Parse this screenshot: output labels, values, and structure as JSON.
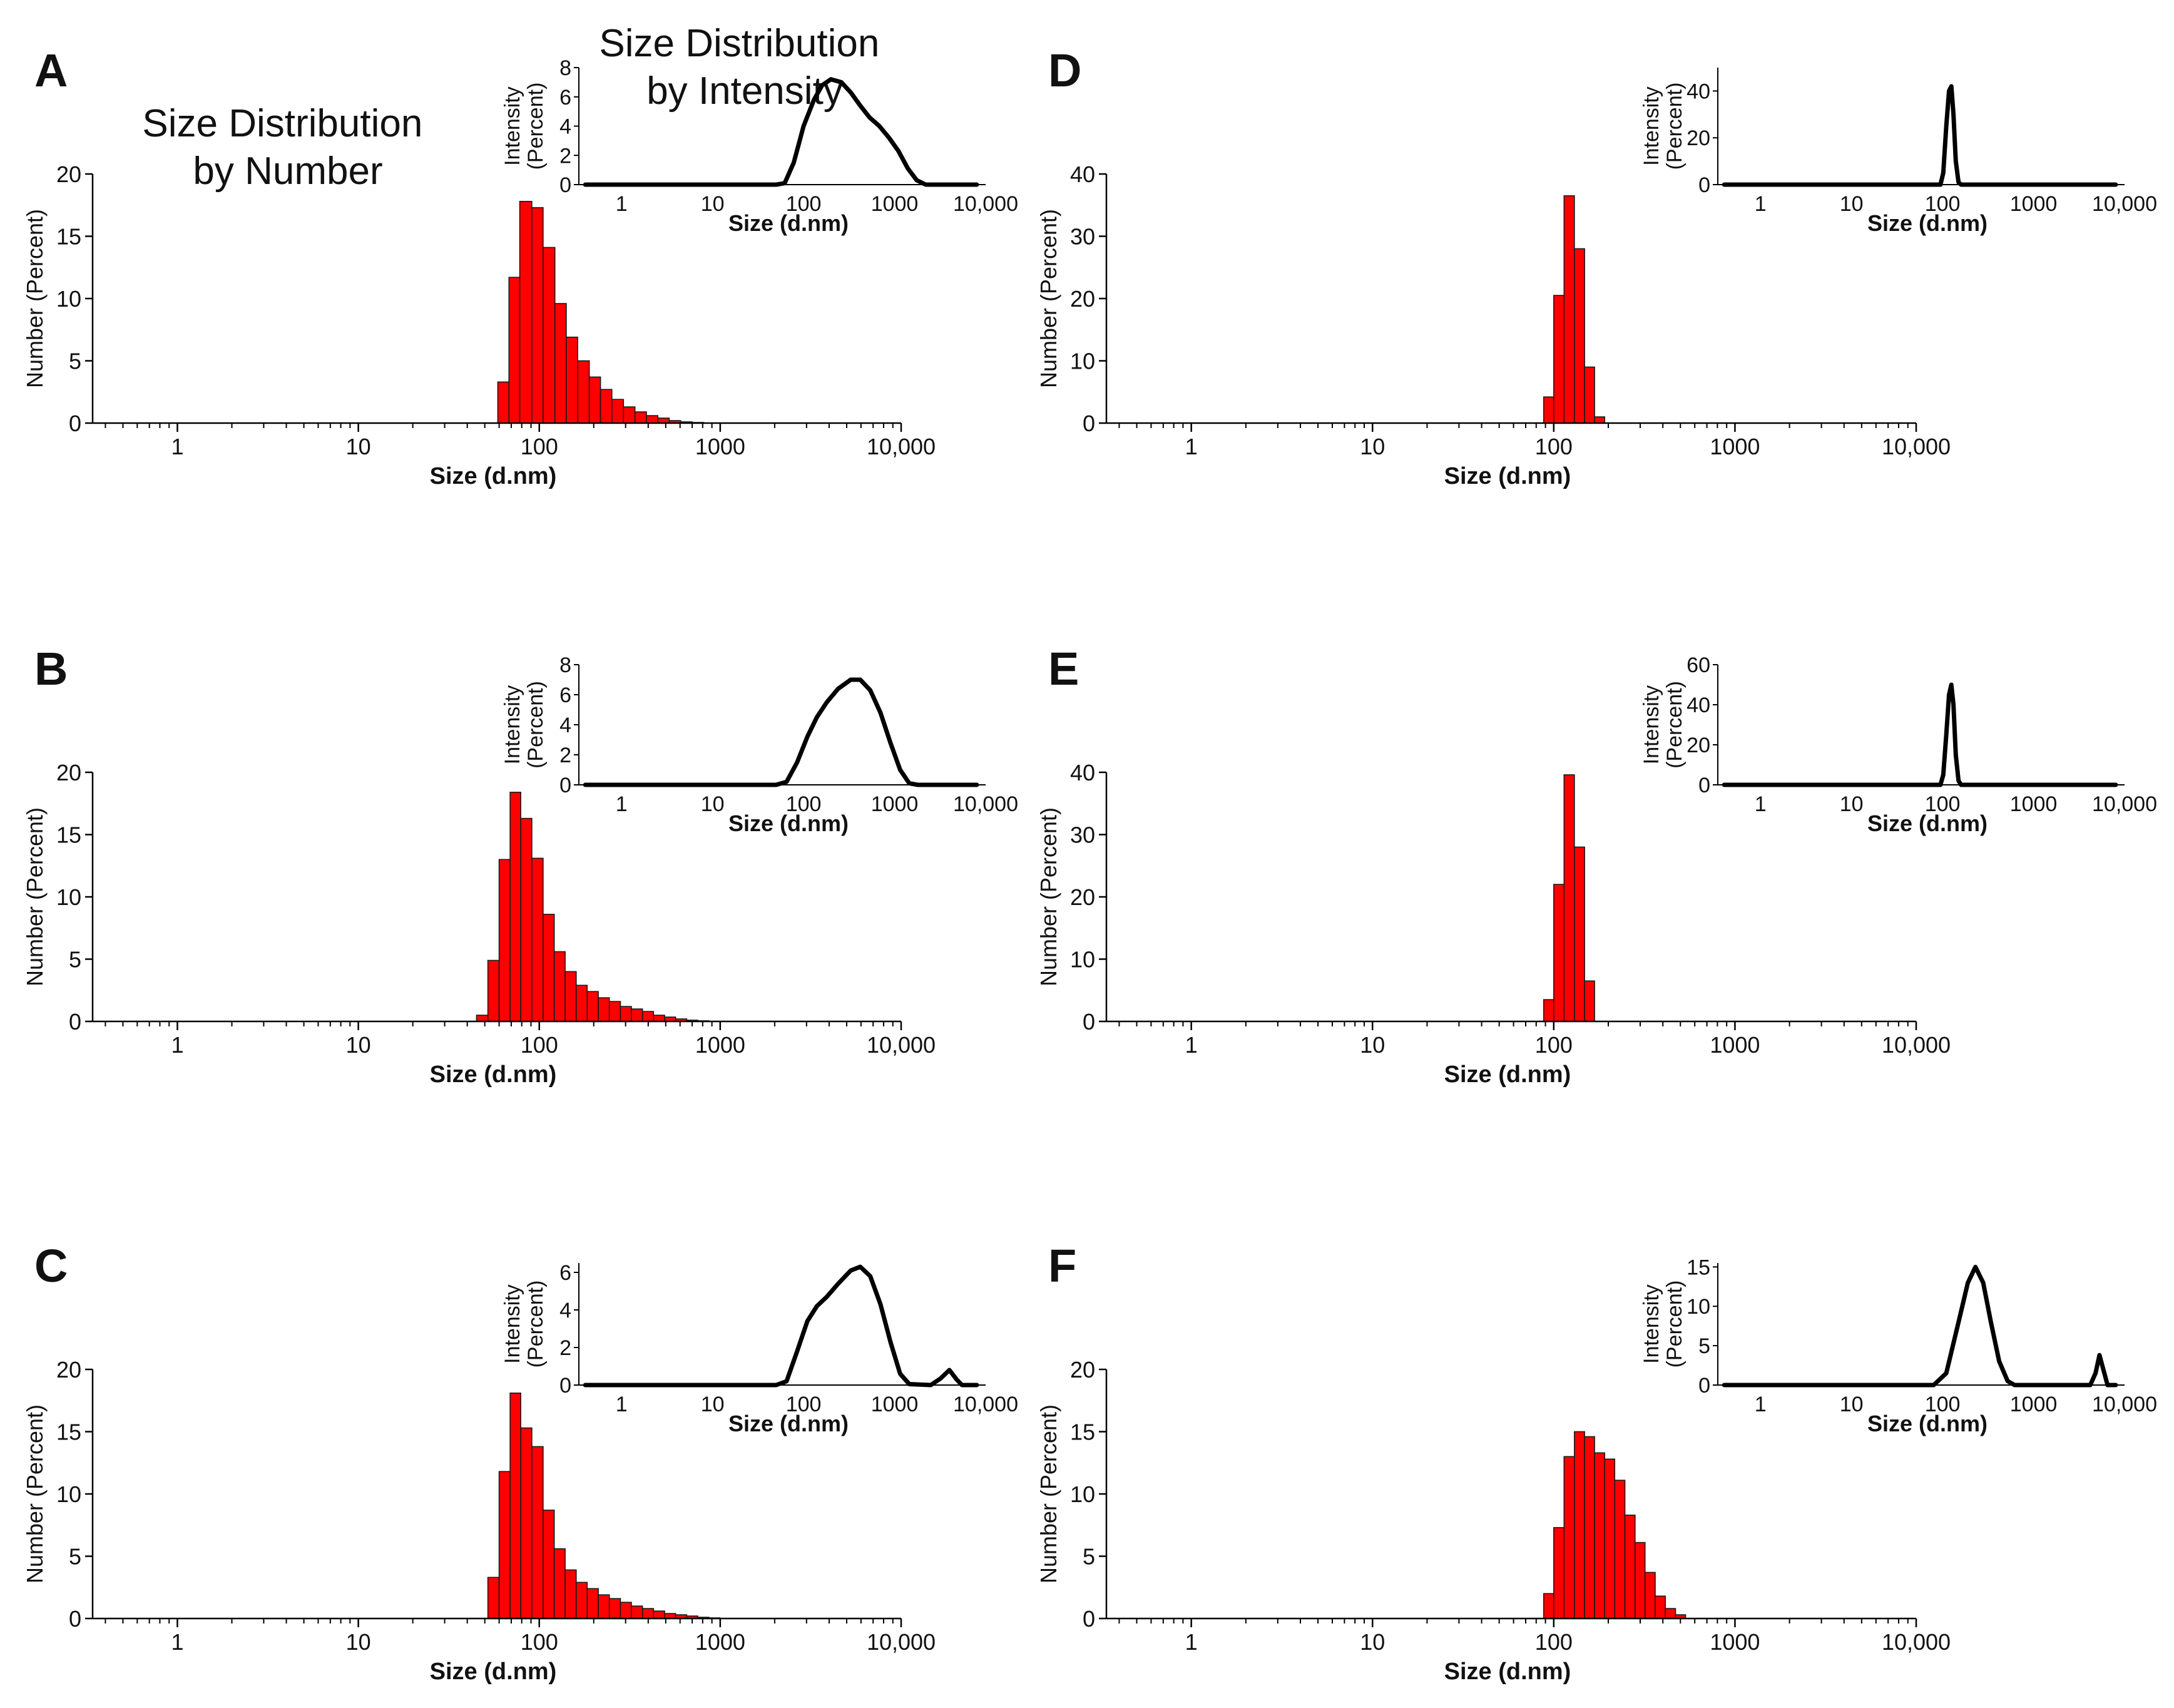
{
  "figure": {
    "main_title": [
      "Size Distribution",
      "by Number"
    ],
    "inset_title": [
      "Size Distribution",
      "by Intensity"
    ]
  },
  "chart_data": [
    {
      "panel": "A",
      "type": "bar",
      "xlabel": "Size (d.nm)",
      "ylabel": "Number (Percent)",
      "x_scale": "log",
      "xlim": [
        0.34,
        10000
      ],
      "ylim": [
        0,
        20
      ],
      "x_ticks": [
        1,
        10,
        100,
        1000,
        10000
      ],
      "x_tick_labels": [
        "1",
        "10",
        "100",
        "1000",
        "10,000"
      ],
      "y_ticks": [
        0,
        5,
        10,
        15,
        20
      ],
      "bins": [
        [
          59,
          68,
          3.3
        ],
        [
          68,
          78,
          11.7
        ],
        [
          78,
          91,
          17.8
        ],
        [
          91,
          105,
          17.3
        ],
        [
          105,
          122,
          14.1
        ],
        [
          122,
          141,
          9.6
        ],
        [
          141,
          163,
          6.9
        ],
        [
          163,
          189,
          5.0
        ],
        [
          189,
          218,
          3.7
        ],
        [
          218,
          252,
          2.7
        ],
        [
          252,
          292,
          1.9
        ],
        [
          292,
          338,
          1.3
        ],
        [
          338,
          391,
          0.9
        ],
        [
          391,
          452,
          0.6
        ],
        [
          452,
          523,
          0.4
        ],
        [
          523,
          605,
          0.2
        ],
        [
          605,
          700,
          0.1
        ],
        [
          700,
          810,
          0.05
        ]
      ],
      "inset": {
        "type": "line",
        "xlabel": "Size (d.nm)",
        "ylabel": "Intensity (Percent)",
        "x_scale": "log",
        "xlim": [
          0.34,
          10000
        ],
        "ylim": [
          0,
          8
        ],
        "x_ticks": [
          1,
          10,
          100,
          1000,
          10000
        ],
        "x_tick_labels": [
          "1",
          "10",
          "100",
          "1000",
          "10,000"
        ],
        "y_ticks": [
          0,
          2,
          4,
          6,
          8
        ],
        "points": [
          [
            0.4,
            0
          ],
          [
            50,
            0
          ],
          [
            62,
            0.1
          ],
          [
            78,
            1.5
          ],
          [
            100,
            4.0
          ],
          [
            130,
            5.8
          ],
          [
            160,
            6.8
          ],
          [
            200,
            7.2
          ],
          [
            260,
            7.0
          ],
          [
            330,
            6.3
          ],
          [
            420,
            5.4
          ],
          [
            530,
            4.6
          ],
          [
            680,
            4.0
          ],
          [
            870,
            3.2
          ],
          [
            1100,
            2.3
          ],
          [
            1400,
            1.1
          ],
          [
            1750,
            0.3
          ],
          [
            2200,
            0
          ],
          [
            8000,
            0
          ]
        ]
      }
    },
    {
      "panel": "B",
      "type": "bar",
      "xlabel": "Size (d.nm)",
      "ylabel": "Number (Percent)",
      "x_scale": "log",
      "xlim": [
        0.34,
        10000
      ],
      "ylim": [
        0,
        20
      ],
      "x_ticks": [
        1,
        10,
        100,
        1000,
        10000
      ],
      "x_tick_labels": [
        "1",
        "10",
        "100",
        "1000",
        "10,000"
      ],
      "y_ticks": [
        0,
        5,
        10,
        15,
        20
      ],
      "bins": [
        [
          45,
          52,
          0.5
        ],
        [
          52,
          60,
          4.9
        ],
        [
          60,
          69,
          13.0
        ],
        [
          69,
          79,
          18.4
        ],
        [
          79,
          91,
          16.3
        ],
        [
          91,
          105,
          13.1
        ],
        [
          105,
          121,
          8.6
        ],
        [
          121,
          139,
          5.6
        ],
        [
          139,
          160,
          4.0
        ],
        [
          160,
          184,
          2.9
        ],
        [
          184,
          212,
          2.4
        ],
        [
          212,
          244,
          1.9
        ],
        [
          244,
          281,
          1.6
        ],
        [
          281,
          323,
          1.2
        ],
        [
          323,
          372,
          1.0
        ],
        [
          372,
          428,
          0.8
        ],
        [
          428,
          493,
          0.5
        ],
        [
          493,
          567,
          0.35
        ],
        [
          567,
          653,
          0.2
        ],
        [
          653,
          752,
          0.1
        ],
        [
          752,
          866,
          0.05
        ]
      ],
      "inset": {
        "type": "line",
        "xlabel": "Size (d.nm)",
        "ylabel": "Intensity (Percent)",
        "x_scale": "log",
        "xlim": [
          0.34,
          10000
        ],
        "ylim": [
          0,
          8
        ],
        "x_ticks": [
          1,
          10,
          100,
          1000,
          10000
        ],
        "x_tick_labels": [
          "1",
          "10",
          "100",
          "1000",
          "10,000"
        ],
        "y_ticks": [
          0,
          2,
          4,
          6,
          8
        ],
        "points": [
          [
            0.4,
            0
          ],
          [
            50,
            0
          ],
          [
            65,
            0.2
          ],
          [
            85,
            1.5
          ],
          [
            110,
            3.2
          ],
          [
            140,
            4.5
          ],
          [
            180,
            5.5
          ],
          [
            240,
            6.4
          ],
          [
            330,
            7.0
          ],
          [
            420,
            7.0
          ],
          [
            540,
            6.3
          ],
          [
            700,
            4.8
          ],
          [
            900,
            2.8
          ],
          [
            1150,
            1.0
          ],
          [
            1450,
            0.1
          ],
          [
            1800,
            0
          ],
          [
            8000,
            0
          ]
        ]
      }
    },
    {
      "panel": "C",
      "type": "bar",
      "xlabel": "Size (d.nm)",
      "ylabel": "Number (Percent)",
      "x_scale": "log",
      "xlim": [
        0.34,
        10000
      ],
      "ylim": [
        0,
        20
      ],
      "x_ticks": [
        1,
        10,
        100,
        1000,
        10000
      ],
      "x_tick_labels": [
        "1",
        "10",
        "100",
        "1000",
        "10,000"
      ],
      "y_ticks": [
        0,
        5,
        10,
        15,
        20
      ],
      "bins": [
        [
          52,
          60,
          3.3
        ],
        [
          60,
          69,
          11.8
        ],
        [
          69,
          79,
          18.1
        ],
        [
          79,
          91,
          15.3
        ],
        [
          91,
          105,
          13.8
        ],
        [
          105,
          121,
          8.7
        ],
        [
          121,
          139,
          5.6
        ],
        [
          139,
          160,
          3.9
        ],
        [
          160,
          184,
          2.9
        ],
        [
          184,
          212,
          2.4
        ],
        [
          212,
          244,
          1.9
        ],
        [
          244,
          281,
          1.6
        ],
        [
          281,
          323,
          1.3
        ],
        [
          323,
          372,
          1.0
        ],
        [
          372,
          428,
          0.8
        ],
        [
          428,
          493,
          0.6
        ],
        [
          493,
          567,
          0.4
        ],
        [
          567,
          653,
          0.3
        ],
        [
          653,
          752,
          0.2
        ],
        [
          752,
          866,
          0.1
        ],
        [
          866,
          997,
          0.05
        ]
      ],
      "inset": {
        "type": "line",
        "xlabel": "Size (d.nm)",
        "ylabel": "Intensity (Percent)",
        "x_scale": "log",
        "xlim": [
          0.34,
          10000
        ],
        "ylim": [
          0,
          6.5
        ],
        "x_ticks": [
          1,
          10,
          100,
          1000,
          10000
        ],
        "x_tick_labels": [
          "1",
          "10",
          "100",
          "1000",
          "10,000"
        ],
        "y_ticks": [
          0,
          2,
          4,
          6
        ],
        "points": [
          [
            0.4,
            0
          ],
          [
            50,
            0
          ],
          [
            65,
            0.2
          ],
          [
            85,
            1.8
          ],
          [
            110,
            3.4
          ],
          [
            140,
            4.2
          ],
          [
            180,
            4.7
          ],
          [
            240,
            5.4
          ],
          [
            330,
            6.1
          ],
          [
            420,
            6.3
          ],
          [
            540,
            5.8
          ],
          [
            700,
            4.3
          ],
          [
            900,
            2.3
          ],
          [
            1150,
            0.6
          ],
          [
            1450,
            0.05
          ],
          [
            2500,
            0
          ],
          [
            3200,
            0.35
          ],
          [
            4000,
            0.8
          ],
          [
            4800,
            0.3
          ],
          [
            5500,
            0
          ],
          [
            8000,
            0
          ]
        ]
      }
    },
    {
      "panel": "D",
      "type": "bar",
      "xlabel": "Size (d.nm)",
      "ylabel": "Number (Percent)",
      "x_scale": "log",
      "xlim": [
        0.34,
        10000
      ],
      "ylim": [
        0,
        40
      ],
      "x_ticks": [
        1,
        10,
        100,
        1000,
        10000
      ],
      "x_tick_labels": [
        "1",
        "10",
        "100",
        "1000",
        "10,000"
      ],
      "y_ticks": [
        0,
        10,
        20,
        30,
        40
      ],
      "bins": [
        [
          88,
          100,
          4.2
        ],
        [
          100,
          114,
          20.5
        ],
        [
          114,
          130,
          36.5
        ],
        [
          130,
          148,
          28.0
        ],
        [
          148,
          168,
          9.0
        ],
        [
          168,
          191,
          1.0
        ]
      ],
      "inset": {
        "type": "line",
        "xlabel": "Size (d.nm)",
        "ylabel": "Intensity (Percent)",
        "x_scale": "log",
        "xlim": [
          0.34,
          10000
        ],
        "ylim": [
          0,
          50
        ],
        "x_ticks": [
          1,
          10,
          100,
          1000,
          10000
        ],
        "x_tick_labels": [
          "1",
          "10",
          "100",
          "1000",
          "10,000"
        ],
        "y_ticks": [
          0,
          20,
          40
        ],
        "points": [
          [
            0.4,
            0
          ],
          [
            95,
            0
          ],
          [
            102,
            5
          ],
          [
            110,
            25
          ],
          [
            118,
            40
          ],
          [
            125,
            42
          ],
          [
            132,
            30
          ],
          [
            140,
            10
          ],
          [
            150,
            1
          ],
          [
            160,
            0
          ],
          [
            8000,
            0
          ]
        ]
      }
    },
    {
      "panel": "E",
      "type": "bar",
      "xlabel": "Size (d.nm)",
      "ylabel": "Number (Percent)",
      "x_scale": "log",
      "xlim": [
        0.34,
        10000
      ],
      "ylim": [
        0,
        40
      ],
      "x_ticks": [
        1,
        10,
        100,
        1000,
        10000
      ],
      "x_tick_labels": [
        "1",
        "10",
        "100",
        "1000",
        "10,000"
      ],
      "y_ticks": [
        0,
        10,
        20,
        30,
        40
      ],
      "bins": [
        [
          88,
          100,
          3.5
        ],
        [
          100,
          114,
          22.0
        ],
        [
          114,
          130,
          39.6
        ],
        [
          130,
          148,
          28.0
        ],
        [
          148,
          168,
          6.5
        ]
      ],
      "inset": {
        "type": "line",
        "xlabel": "Size (d.nm)",
        "ylabel": "Intensity (Percent)",
        "x_scale": "log",
        "xlim": [
          0.34,
          10000
        ],
        "ylim": [
          0,
          60
        ],
        "x_ticks": [
          1,
          10,
          100,
          1000,
          10000
        ],
        "x_tick_labels": [
          "1",
          "10",
          "100",
          "1000",
          "10,000"
        ],
        "y_ticks": [
          0,
          20,
          40,
          60
        ],
        "points": [
          [
            0.4,
            0
          ],
          [
            95,
            0
          ],
          [
            102,
            5
          ],
          [
            110,
            25
          ],
          [
            118,
            45
          ],
          [
            125,
            50
          ],
          [
            132,
            40
          ],
          [
            140,
            15
          ],
          [
            150,
            2
          ],
          [
            160,
            0
          ],
          [
            8000,
            0
          ]
        ]
      }
    },
    {
      "panel": "F",
      "type": "bar",
      "xlabel": "Size (d.nm)",
      "ylabel": "Number (Percent)",
      "x_scale": "log",
      "xlim": [
        0.34,
        10000
      ],
      "ylim": [
        0,
        20
      ],
      "x_ticks": [
        1,
        10,
        100,
        1000,
        10000
      ],
      "x_tick_labels": [
        "1",
        "10",
        "100",
        "1000",
        "10,000"
      ],
      "y_ticks": [
        0,
        5,
        10,
        15,
        20
      ],
      "bins": [
        [
          88,
          100,
          2.0
        ],
        [
          100,
          114,
          7.3
        ],
        [
          114,
          130,
          13.0
        ],
        [
          130,
          148,
          15.0
        ],
        [
          148,
          168,
          14.6
        ],
        [
          168,
          191,
          13.3
        ],
        [
          191,
          217,
          12.8
        ],
        [
          217,
          247,
          11.1
        ],
        [
          247,
          281,
          8.3
        ],
        [
          281,
          319,
          6.1
        ],
        [
          319,
          363,
          3.7
        ],
        [
          363,
          413,
          1.8
        ],
        [
          413,
          470,
          0.8
        ],
        [
          470,
          534,
          0.3
        ]
      ],
      "inset": {
        "type": "line",
        "xlabel": "Size (d.nm)",
        "ylabel": "Intensity (Percent)",
        "x_scale": "log",
        "xlim": [
          0.34,
          10000
        ],
        "ylim": [
          0,
          15.5
        ],
        "x_ticks": [
          1,
          10,
          100,
          1000,
          10000
        ],
        "x_tick_labels": [
          "1",
          "10",
          "100",
          "1000",
          "10,000"
        ],
        "y_ticks": [
          0,
          5,
          10,
          15
        ],
        "points": [
          [
            0.4,
            0
          ],
          [
            80,
            0
          ],
          [
            110,
            1.5
          ],
          [
            150,
            8
          ],
          [
            190,
            13
          ],
          [
            230,
            15
          ],
          [
            280,
            13
          ],
          [
            340,
            8
          ],
          [
            420,
            3
          ],
          [
            520,
            0.5
          ],
          [
            620,
            0
          ],
          [
            4200,
            0
          ],
          [
            4800,
            1.5
          ],
          [
            5300,
            3.8
          ],
          [
            5900,
            1.8
          ],
          [
            6500,
            0
          ],
          [
            8000,
            0
          ]
        ]
      }
    }
  ]
}
